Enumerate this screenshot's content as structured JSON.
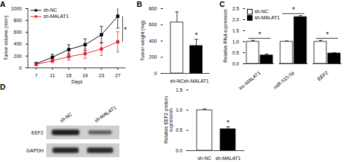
{
  "chart_data": [
    {
      "panel": "A",
      "type": "line",
      "x_label": "Days",
      "y_label": "Tumor volume (mm³)",
      "x": [
        7,
        11,
        15,
        19,
        23,
        27
      ],
      "xlim": [
        5,
        29
      ],
      "xticks": [
        7,
        11,
        15,
        19,
        23,
        27
      ],
      "ylim": [
        0,
        1000
      ],
      "yticks": [
        0,
        200,
        400,
        600,
        800,
        1000
      ],
      "legend": "top-left",
      "series": [
        {
          "name": "sh-NC",
          "color": "#000000",
          "marker": "square",
          "values": [
            70,
            180,
            310,
            390,
            560,
            870
          ],
          "errors": [
            25,
            50,
            80,
            100,
            140,
            200
          ]
        },
        {
          "name": "sh-MALAT1",
          "color": "#e8202a",
          "marker": "circle",
          "values": [
            60,
            120,
            190,
            240,
            320,
            440
          ],
          "errors": [
            20,
            30,
            60,
            80,
            110,
            170
          ]
        }
      ],
      "annotations": [
        {
          "text": "*",
          "x": 27
        }
      ]
    },
    {
      "panel": "B",
      "type": "bar",
      "y_label": "Tumor weight (mg)",
      "categories": [
        "sh-NC",
        "sh-MALAT1"
      ],
      "values": [
        630,
        340
      ],
      "errors": [
        130,
        80
      ],
      "colors": [
        "#ffffff",
        "#000000"
      ],
      "ylim": [
        0,
        800
      ],
      "yticks": [
        0,
        200,
        400,
        600,
        800
      ],
      "annotations": [
        {
          "text": "*",
          "category": "sh-MALAT1"
        }
      ]
    },
    {
      "panel": "C",
      "type": "bar",
      "y_label": "Relative RNA expression",
      "categories": [
        "lnc-MALAT1",
        "miR-515-5p",
        "EEF2"
      ],
      "series": [
        {
          "name": "sh-NC",
          "color": "#ffffff",
          "values": [
            1.0,
            1.0,
            1.0
          ],
          "errors": [
            0.06,
            0.04,
            0.06
          ]
        },
        {
          "name": "sh-MALAT1",
          "color": "#000000",
          "values": [
            0.38,
            2.12,
            0.47
          ],
          "errors": [
            0.06,
            0.06,
            0.03
          ]
        }
      ],
      "ylim": [
        0,
        2.5
      ],
      "yticks": [
        {
          "value": 0,
          "label": "0.0"
        },
        0.5,
        {
          "value": 1,
          "label": "1.0"
        },
        1.5,
        {
          "value": 2,
          "label": "2.0"
        },
        2.5
      ],
      "legend": "top-left",
      "annotations": [
        {
          "text": "*",
          "category": "lnc-MALAT1"
        },
        {
          "text": "*",
          "category": "miR-515-5p"
        },
        {
          "text": "*",
          "category": "EEF2"
        }
      ]
    },
    {
      "panel": "D",
      "type": "bar",
      "y_label": "Relative EEF2 protein expression",
      "categories": [
        "sh-NC",
        "sh-MALAT1"
      ],
      "values": [
        1.0,
        0.53
      ],
      "errors": [
        0.03,
        0.06
      ],
      "colors": [
        "#ffffff",
        "#000000"
      ],
      "ylim": [
        0,
        1.5
      ],
      "yticks": [
        {
          "value": 0,
          "label": "0.0"
        },
        0.5,
        {
          "value": 1,
          "label": "1.0"
        },
        1.5
      ],
      "annotations": [
        {
          "text": "*",
          "category": "sh-MALAT1"
        }
      ]
    }
  ],
  "blot": {
    "lanes": [
      "sh-NC",
      "sh-MALAT1"
    ],
    "bands": [
      "EEF2",
      "GAPDH"
    ]
  }
}
